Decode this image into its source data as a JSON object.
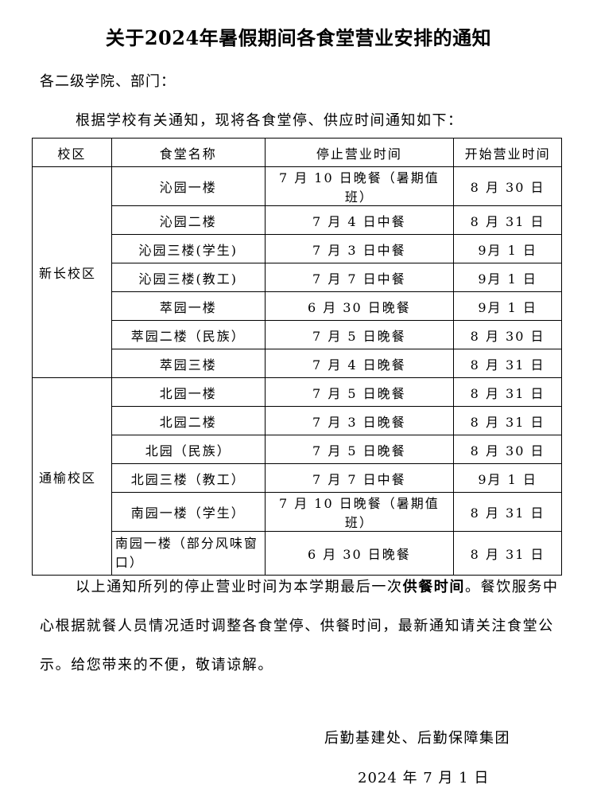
{
  "title": "关于2024年暑假期间各食堂营业安排的通知",
  "salutation": "各二级学院、部门：",
  "intro": "根据学校有关通知，现将各食堂停、供应时间通知如下：",
  "table": {
    "headers": [
      "校区",
      "食堂名称",
      "停止营业时间",
      "开始营业时间"
    ],
    "groups": [
      {
        "campus": "新长校区",
        "rows": [
          [
            "沁园一楼",
            "7 月 10 日晚餐（暑期值班）",
            "8 月 30 日"
          ],
          [
            "沁园二楼",
            "7 月 4 日中餐",
            "8 月 31 日"
          ],
          [
            "沁园三楼(学生)",
            "7 月 3 日中餐",
            "9月 1 日"
          ],
          [
            "沁园三楼(教工)",
            "7 月 7 日中餐",
            "9月 1 日"
          ],
          [
            "萃园一楼",
            "6 月 30 日晚餐",
            "9月 1 日"
          ],
          [
            "萃园二楼（民族）",
            "7 月 5 日晚餐",
            "8 月 30 日"
          ],
          [
            "萃园三楼",
            "7 月 4 日晚餐",
            "8 月 31 日"
          ]
        ]
      },
      {
        "campus": "通榆校区",
        "rows": [
          [
            "北园一楼",
            "7 月 5 日晚餐",
            "8 月 31 日"
          ],
          [
            "北园二楼",
            "7 月 3 日晚餐",
            "8 月 31 日"
          ],
          [
            "北园（民族）",
            "7 月 5 日晚餐",
            "8 月 30 日"
          ],
          [
            "北园三楼（教工）",
            "7 月 7 日中餐",
            "9月 1 日"
          ],
          [
            "南园一楼（学生）",
            "7 月 10 日晚餐（暑期值班）",
            "8 月 31 日"
          ],
          [
            "南园一楼（部分风味窗口）",
            "6 月 30 日晚餐",
            "8 月 31 日"
          ]
        ]
      }
    ]
  },
  "body": {
    "part1": "以上通知所列的停止营业时间为本学期最后一次",
    "bold": "供餐时间",
    "part2": "。餐饮服务中心根据就餐人员情况适时调整各食堂停、供餐时间，最新通知请关注食堂公示。给您带来的不便，敬请谅解。"
  },
  "signature": "后勤基建处、后勤保障集团",
  "date": "2024 年 7 月 1 日"
}
